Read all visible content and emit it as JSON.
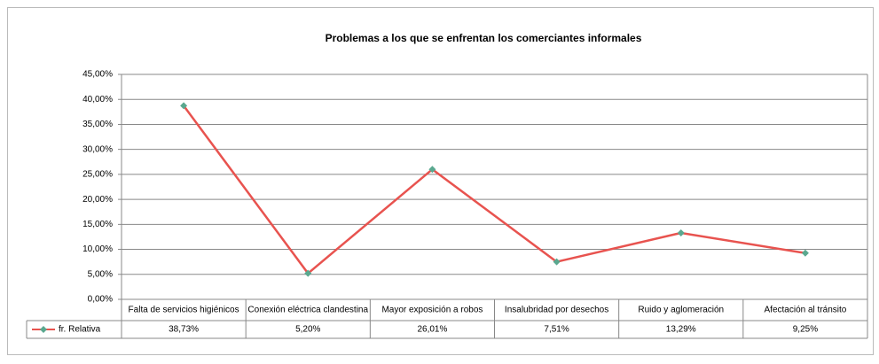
{
  "chart_data": {
    "type": "line",
    "title": "Problemas a los que se enfrentan los comerciantes informales",
    "categories": [
      "Falta de servicios higiénicos",
      "Conexión eléctrica clandestina",
      "Mayor exposición a robos",
      "Insalubridad por desechos",
      "Ruido y aglomeración",
      "Afectación al tránsito"
    ],
    "series": [
      {
        "name": "fr. Relativa",
        "color": "#e8534f",
        "marker_color": "#5aa88f",
        "values": [
          38.73,
          5.2,
          26.01,
          7.51,
          13.29,
          9.25
        ],
        "value_labels": [
          "38,73%",
          "5,20%",
          "26,01%",
          "7,51%",
          "13,29%",
          "9,25%"
        ]
      }
    ],
    "ylim": [
      0,
      45
    ],
    "yticks": [
      {
        "value": 0,
        "label": "0,00%"
      },
      {
        "value": 5,
        "label": "5,00%"
      },
      {
        "value": 10,
        "label": "10,00%"
      },
      {
        "value": 15,
        "label": "15,00%"
      },
      {
        "value": 20,
        "label": "20,00%"
      },
      {
        "value": 25,
        "label": "25,00%"
      },
      {
        "value": 30,
        "label": "30,00%"
      },
      {
        "value": 35,
        "label": "35,00%"
      },
      {
        "value": 40,
        "label": "40,00%"
      },
      {
        "value": 45,
        "label": "45,00%"
      }
    ],
    "grid": true
  }
}
